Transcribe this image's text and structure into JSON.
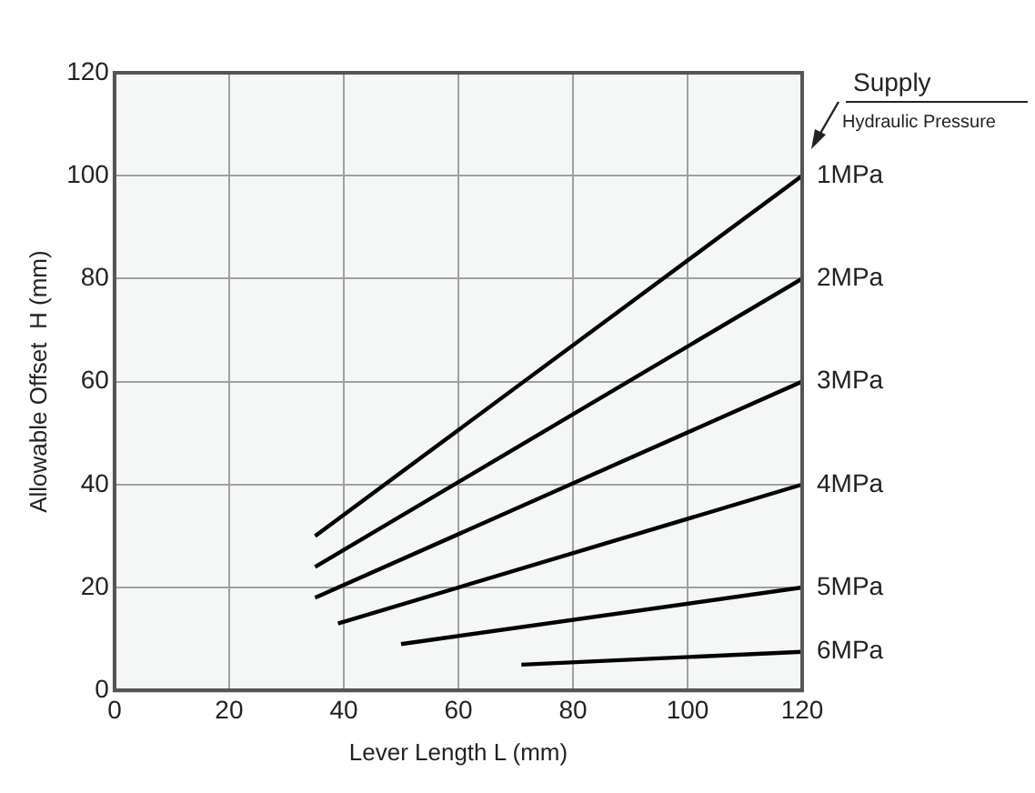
{
  "chart_data": {
    "type": "line",
    "xlabel": "Lever Length L (mm)",
    "ylabel": "Allowable Offset  H (mm)",
    "legend_title": "Supply\nHydraulic Pressure",
    "xlim": [
      0,
      120
    ],
    "xticks": [
      0,
      20,
      40,
      60,
      80,
      100,
      120
    ],
    "ylim": [
      0,
      120
    ],
    "yticks": [
      0,
      20,
      40,
      60,
      80,
      100,
      120
    ],
    "grid": true,
    "legend": false,
    "marker": "none",
    "line_style": "solid",
    "series": [
      {
        "name": "1MPa",
        "color": "#000000",
        "x": [
          35,
          120
        ],
        "values": [
          30,
          100
        ]
      },
      {
        "name": "2MPa",
        "color": "#000000",
        "x": [
          35,
          120
        ],
        "values": [
          24,
          80
        ]
      },
      {
        "name": "3MPa",
        "color": "#000000",
        "x": [
          35,
          120
        ],
        "values": [
          18,
          60
        ]
      },
      {
        "name": "4MPa",
        "color": "#000000",
        "x": [
          39,
          120
        ],
        "values": [
          13,
          40
        ]
      },
      {
        "name": "5MPa",
        "color": "#000000",
        "x": [
          50,
          120
        ],
        "values": [
          9,
          20
        ]
      },
      {
        "name": "6MPa",
        "color": "#000000",
        "x": [
          71,
          120
        ],
        "values": [
          5,
          7.5
        ]
      }
    ]
  }
}
